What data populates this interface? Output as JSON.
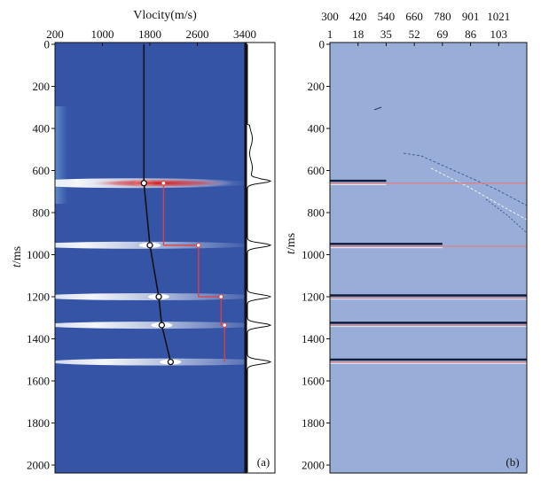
{
  "chart_data": [
    {
      "type": "heatmap",
      "panel_label": "(a)",
      "title": "Vlocity(m/s)",
      "xlabel": "Vlocity(m/s)",
      "ylabel": "t/ms",
      "x_ticks": [
        200,
        1000,
        1800,
        2600,
        3400
      ],
      "xlim": [
        200,
        3400
      ],
      "y_ticks": [
        0,
        200,
        400,
        600,
        800,
        1000,
        1200,
        1400,
        1600,
        1800,
        2000
      ],
      "ylim": [
        0,
        2050
      ],
      "energy_peaks": [
        {
          "t": 660,
          "v": 1700
        },
        {
          "t": 955,
          "v": 1800
        },
        {
          "t": 1200,
          "v": 1950
        },
        {
          "t": 1335,
          "v": 2000
        },
        {
          "t": 1510,
          "v": 2150
        }
      ],
      "rms_velocity_curve": {
        "t": [
          0,
          660,
          955,
          1200,
          1335,
          1510
        ],
        "v": [
          1700,
          1700,
          1800,
          1950,
          2000,
          2150
        ]
      },
      "interval_velocity_curve": {
        "t": [
          660,
          955,
          955,
          1200,
          1200,
          1335,
          1335,
          1510
        ],
        "v": [
          2030,
          2030,
          2620,
          2620,
          3000,
          3000,
          3060,
          3060
        ]
      },
      "side_trace_peaks_t": [
        650,
        955,
        1200,
        1335,
        1510
      ]
    },
    {
      "type": "heatmap",
      "panel_label": "(b)",
      "ylabel": "t/ms",
      "x_ticks_top": [
        "300",
        "420",
        "540",
        "660",
        "780",
        "901",
        "1021"
      ],
      "x_ticks_bottom": [
        "1",
        "18",
        "35",
        "52",
        "69",
        "86",
        "103"
      ],
      "y_ticks": [
        0,
        200,
        400,
        600,
        800,
        1000,
        1200,
        1400,
        1600,
        1800,
        2000
      ],
      "ylim": [
        0,
        2050
      ],
      "reflectors_t": [
        655,
        955,
        1200,
        1330,
        1505
      ],
      "flattened_reflector_extent_trace": [
        35,
        69,
        120,
        120,
        120
      ]
    }
  ]
}
